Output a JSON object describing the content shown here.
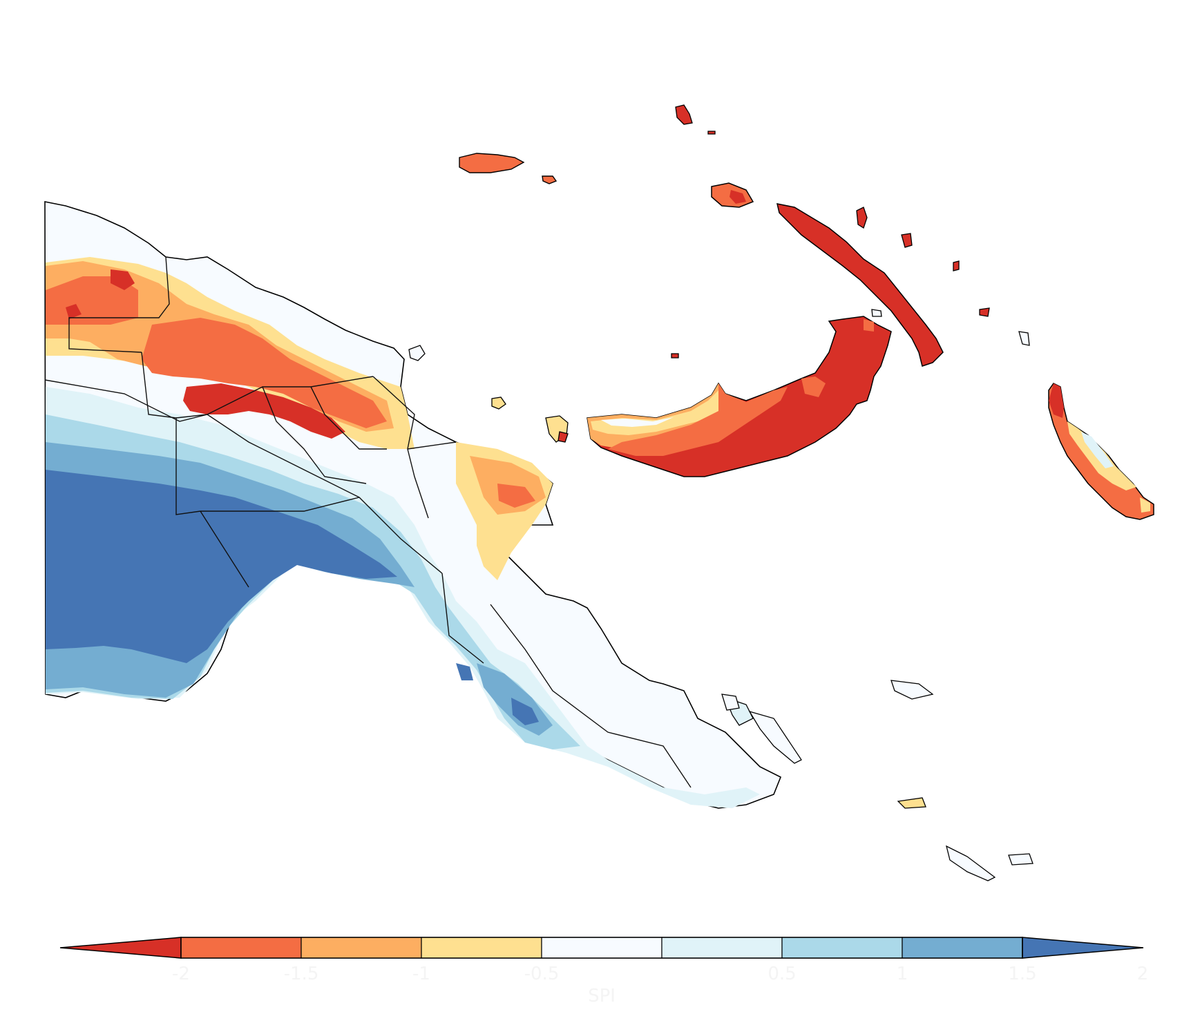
{
  "map": {
    "region": "Papua New Guinea",
    "colors": {
      "lt_neg2": "#d73027",
      "neg2_neg1_5": "#f46d43",
      "neg1_5_neg1": "#fdae61",
      "neg1_neg0_5": "#fee090",
      "neg0_5_0_5": "#f7fbff",
      "p0_5_1": "#e0f3f8",
      "p1_1_5": "#abd9e9",
      "p1_5_2": "#74add1",
      "gt_2": "#4575b4",
      "coast": "#000000",
      "province_border": "#111111"
    }
  },
  "colorbar": {
    "title": "SPI",
    "tick_labels": [
      "-2",
      "-1.5",
      "-1",
      "-0.5",
      "0.5",
      "1",
      "1.5",
      "2"
    ],
    "bins": [
      {
        "color": "#f46d43"
      },
      {
        "color": "#fdae61"
      },
      {
        "color": "#fee090"
      },
      {
        "color": "#f7fbff"
      },
      {
        "color": "#e0f3f8"
      },
      {
        "color": "#abd9e9"
      },
      {
        "color": "#74add1"
      }
    ],
    "extend_low_color": "#d73027",
    "extend_high_color": "#4575b4"
  }
}
